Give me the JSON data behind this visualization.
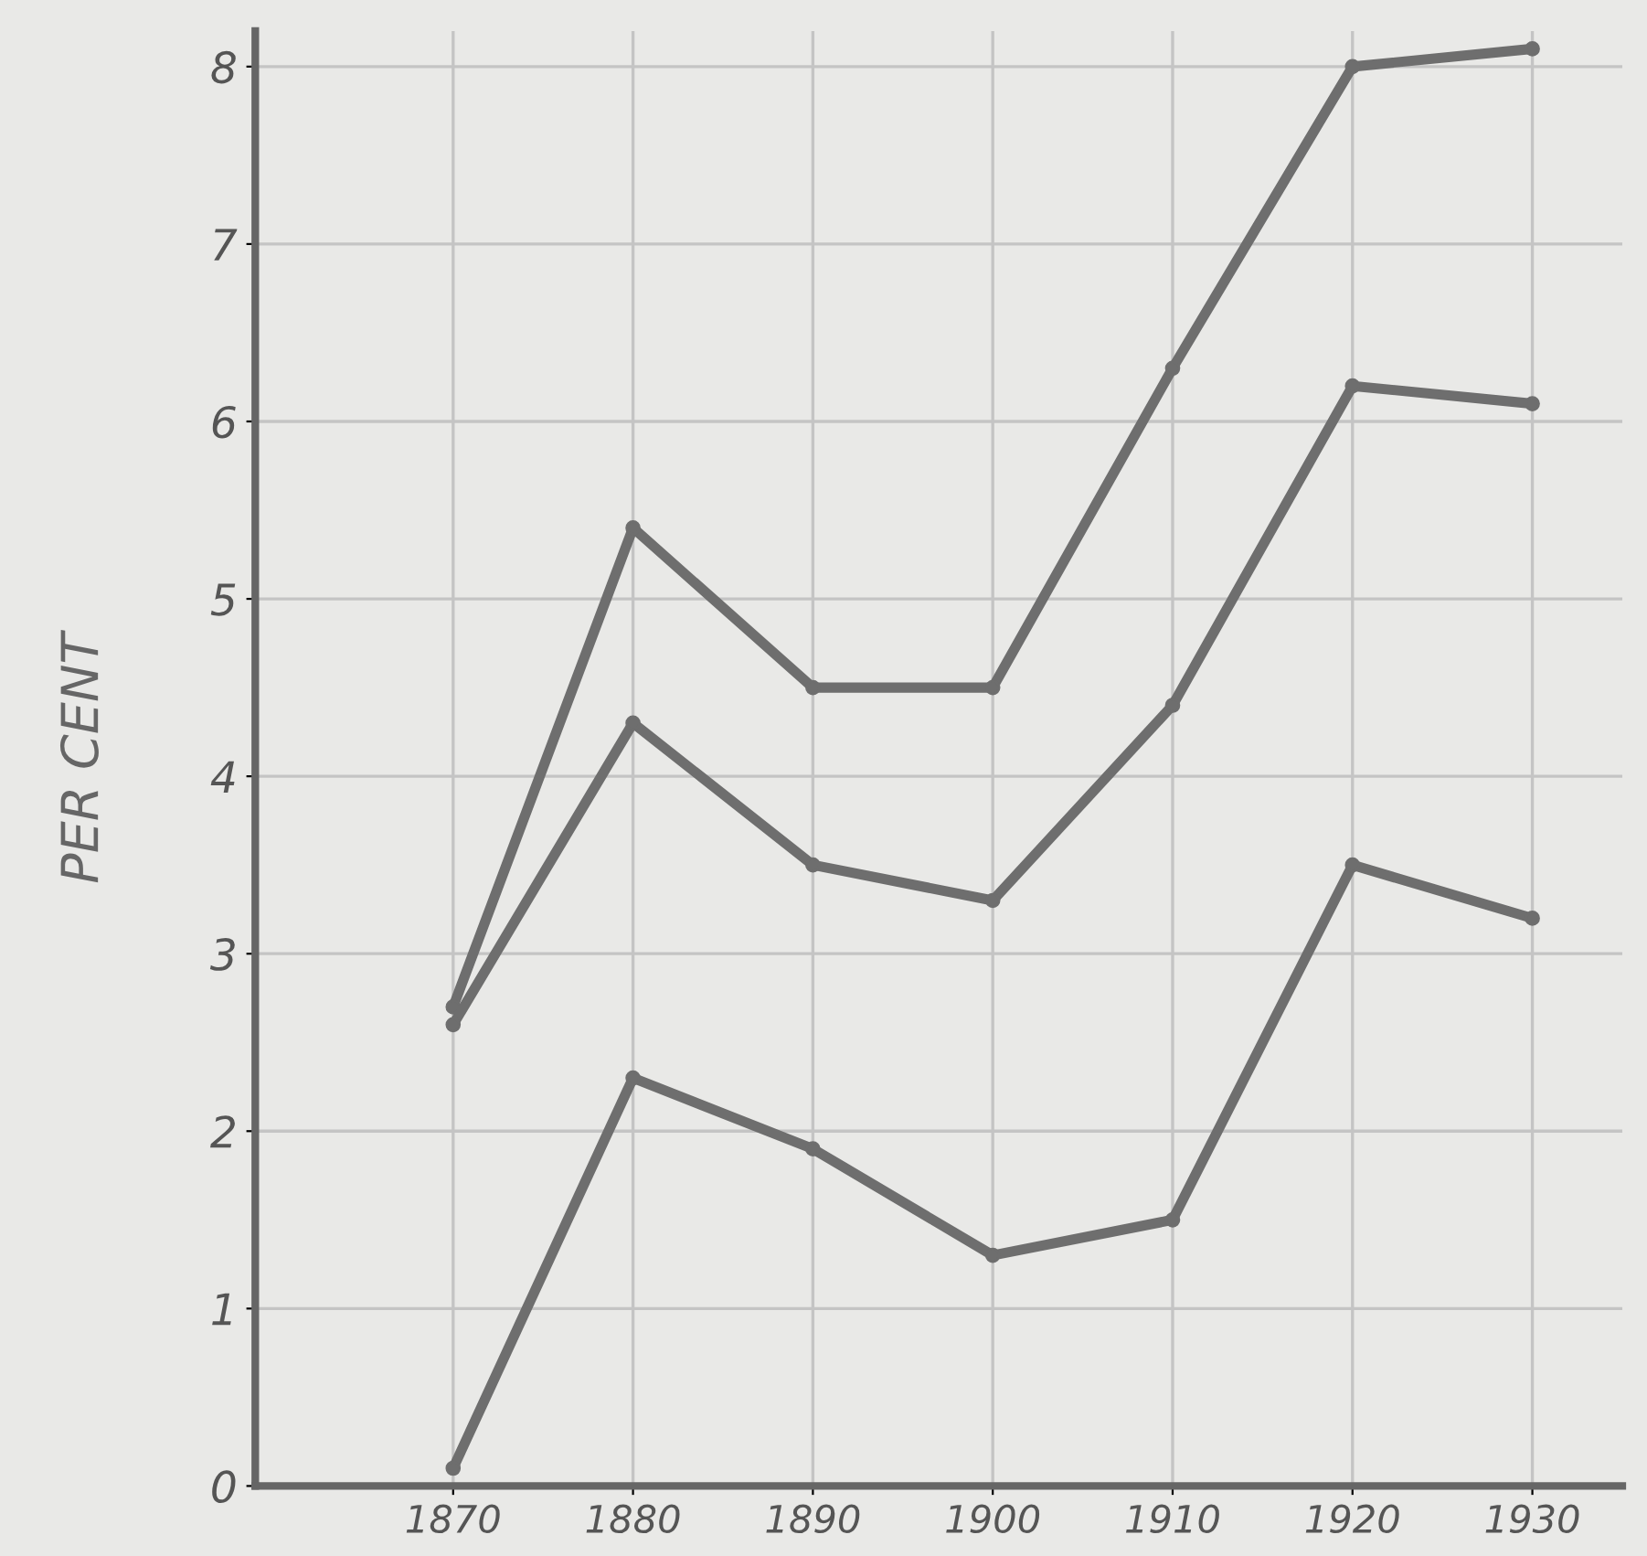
{
  "chart_data": {
    "type": "line",
    "ylabel": "PER CENT",
    "x": [
      1870,
      1880,
      1890,
      1900,
      1910,
      1920,
      1930
    ],
    "series": [
      {
        "color": "#6e6e6e",
        "values": [
          2.7,
          5.4,
          4.5,
          4.5,
          6.3,
          8.0,
          8.1
        ]
      },
      {
        "color": "#6e6e6e",
        "values": [
          2.6,
          4.3,
          3.5,
          3.3,
          4.4,
          6.2,
          6.1
        ]
      },
      {
        "color": "#6e6e6e",
        "values": [
          0.1,
          2.3,
          1.9,
          1.3,
          1.5,
          3.5,
          3.2
        ]
      }
    ],
    "xlim": [
      1859,
      1935
    ],
    "ylim": [
      0,
      8.2
    ],
    "xticks": [
      1870,
      1880,
      1890,
      1900,
      1910,
      1920,
      1930
    ],
    "yticks": [
      0,
      1,
      2,
      3,
      4,
      5,
      6,
      7,
      8
    ],
    "grid": true,
    "marker": "circle",
    "line_style": "solid"
  }
}
